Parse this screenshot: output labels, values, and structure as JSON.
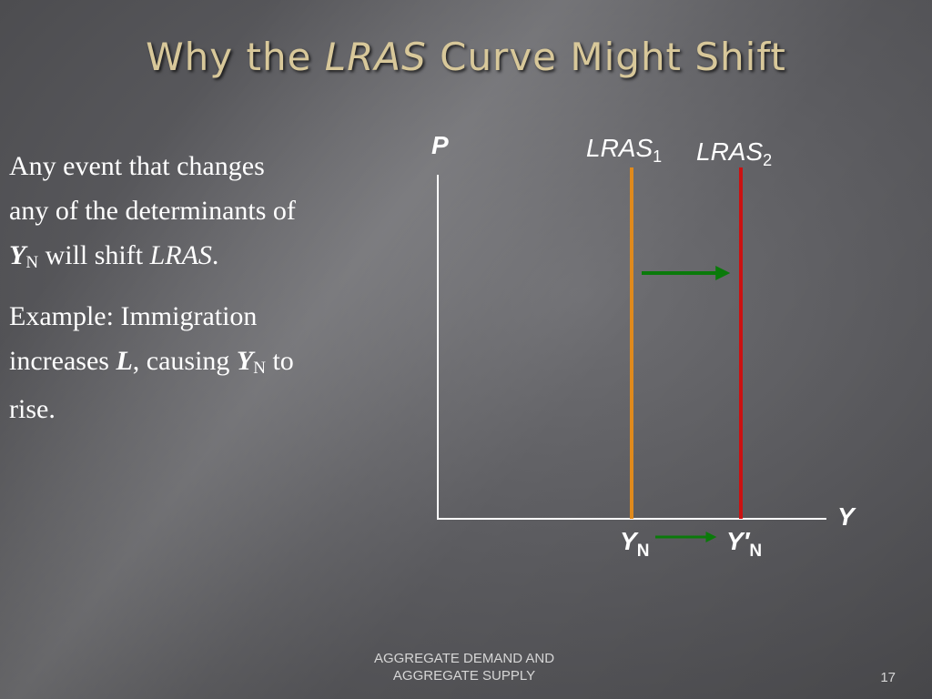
{
  "slide": {
    "title_pre": "Why the ",
    "title_italic": "LRAS",
    "title_post": " Curve Might Shift",
    "footer_line1": "AGGREGATE DEMAND AND",
    "footer_line2": "AGGREGATE SUPPLY",
    "page_number": "17"
  },
  "text": {
    "p1_a": "Any event that changes any of the determinants of ",
    "p1_y": "Y",
    "p1_sub": "N",
    "p1_b": " will shift ",
    "p1_lras": "LRAS",
    "p1_c": ".",
    "p2_a": "Example: Immigration increases ",
    "p2_l": "L",
    "p2_b": ", causing ",
    "p2_y": "Y",
    "p2_sub": "N",
    "p2_c": "  to rise."
  },
  "diagram": {
    "y_axis_label": "P",
    "x_axis_label": "Y",
    "curves": [
      {
        "name": "LRAS",
        "subscript": "1",
        "color": "#e08a1c"
      },
      {
        "name": "LRAS",
        "subscript": "2",
        "color": "#cc1111"
      }
    ],
    "output_labels": [
      {
        "name": "Y",
        "subscript": "N"
      },
      {
        "name": "Y′",
        "subscript": "N"
      }
    ],
    "arrow_color": "#0a7a0a",
    "axis_color": "#ffffff"
  }
}
